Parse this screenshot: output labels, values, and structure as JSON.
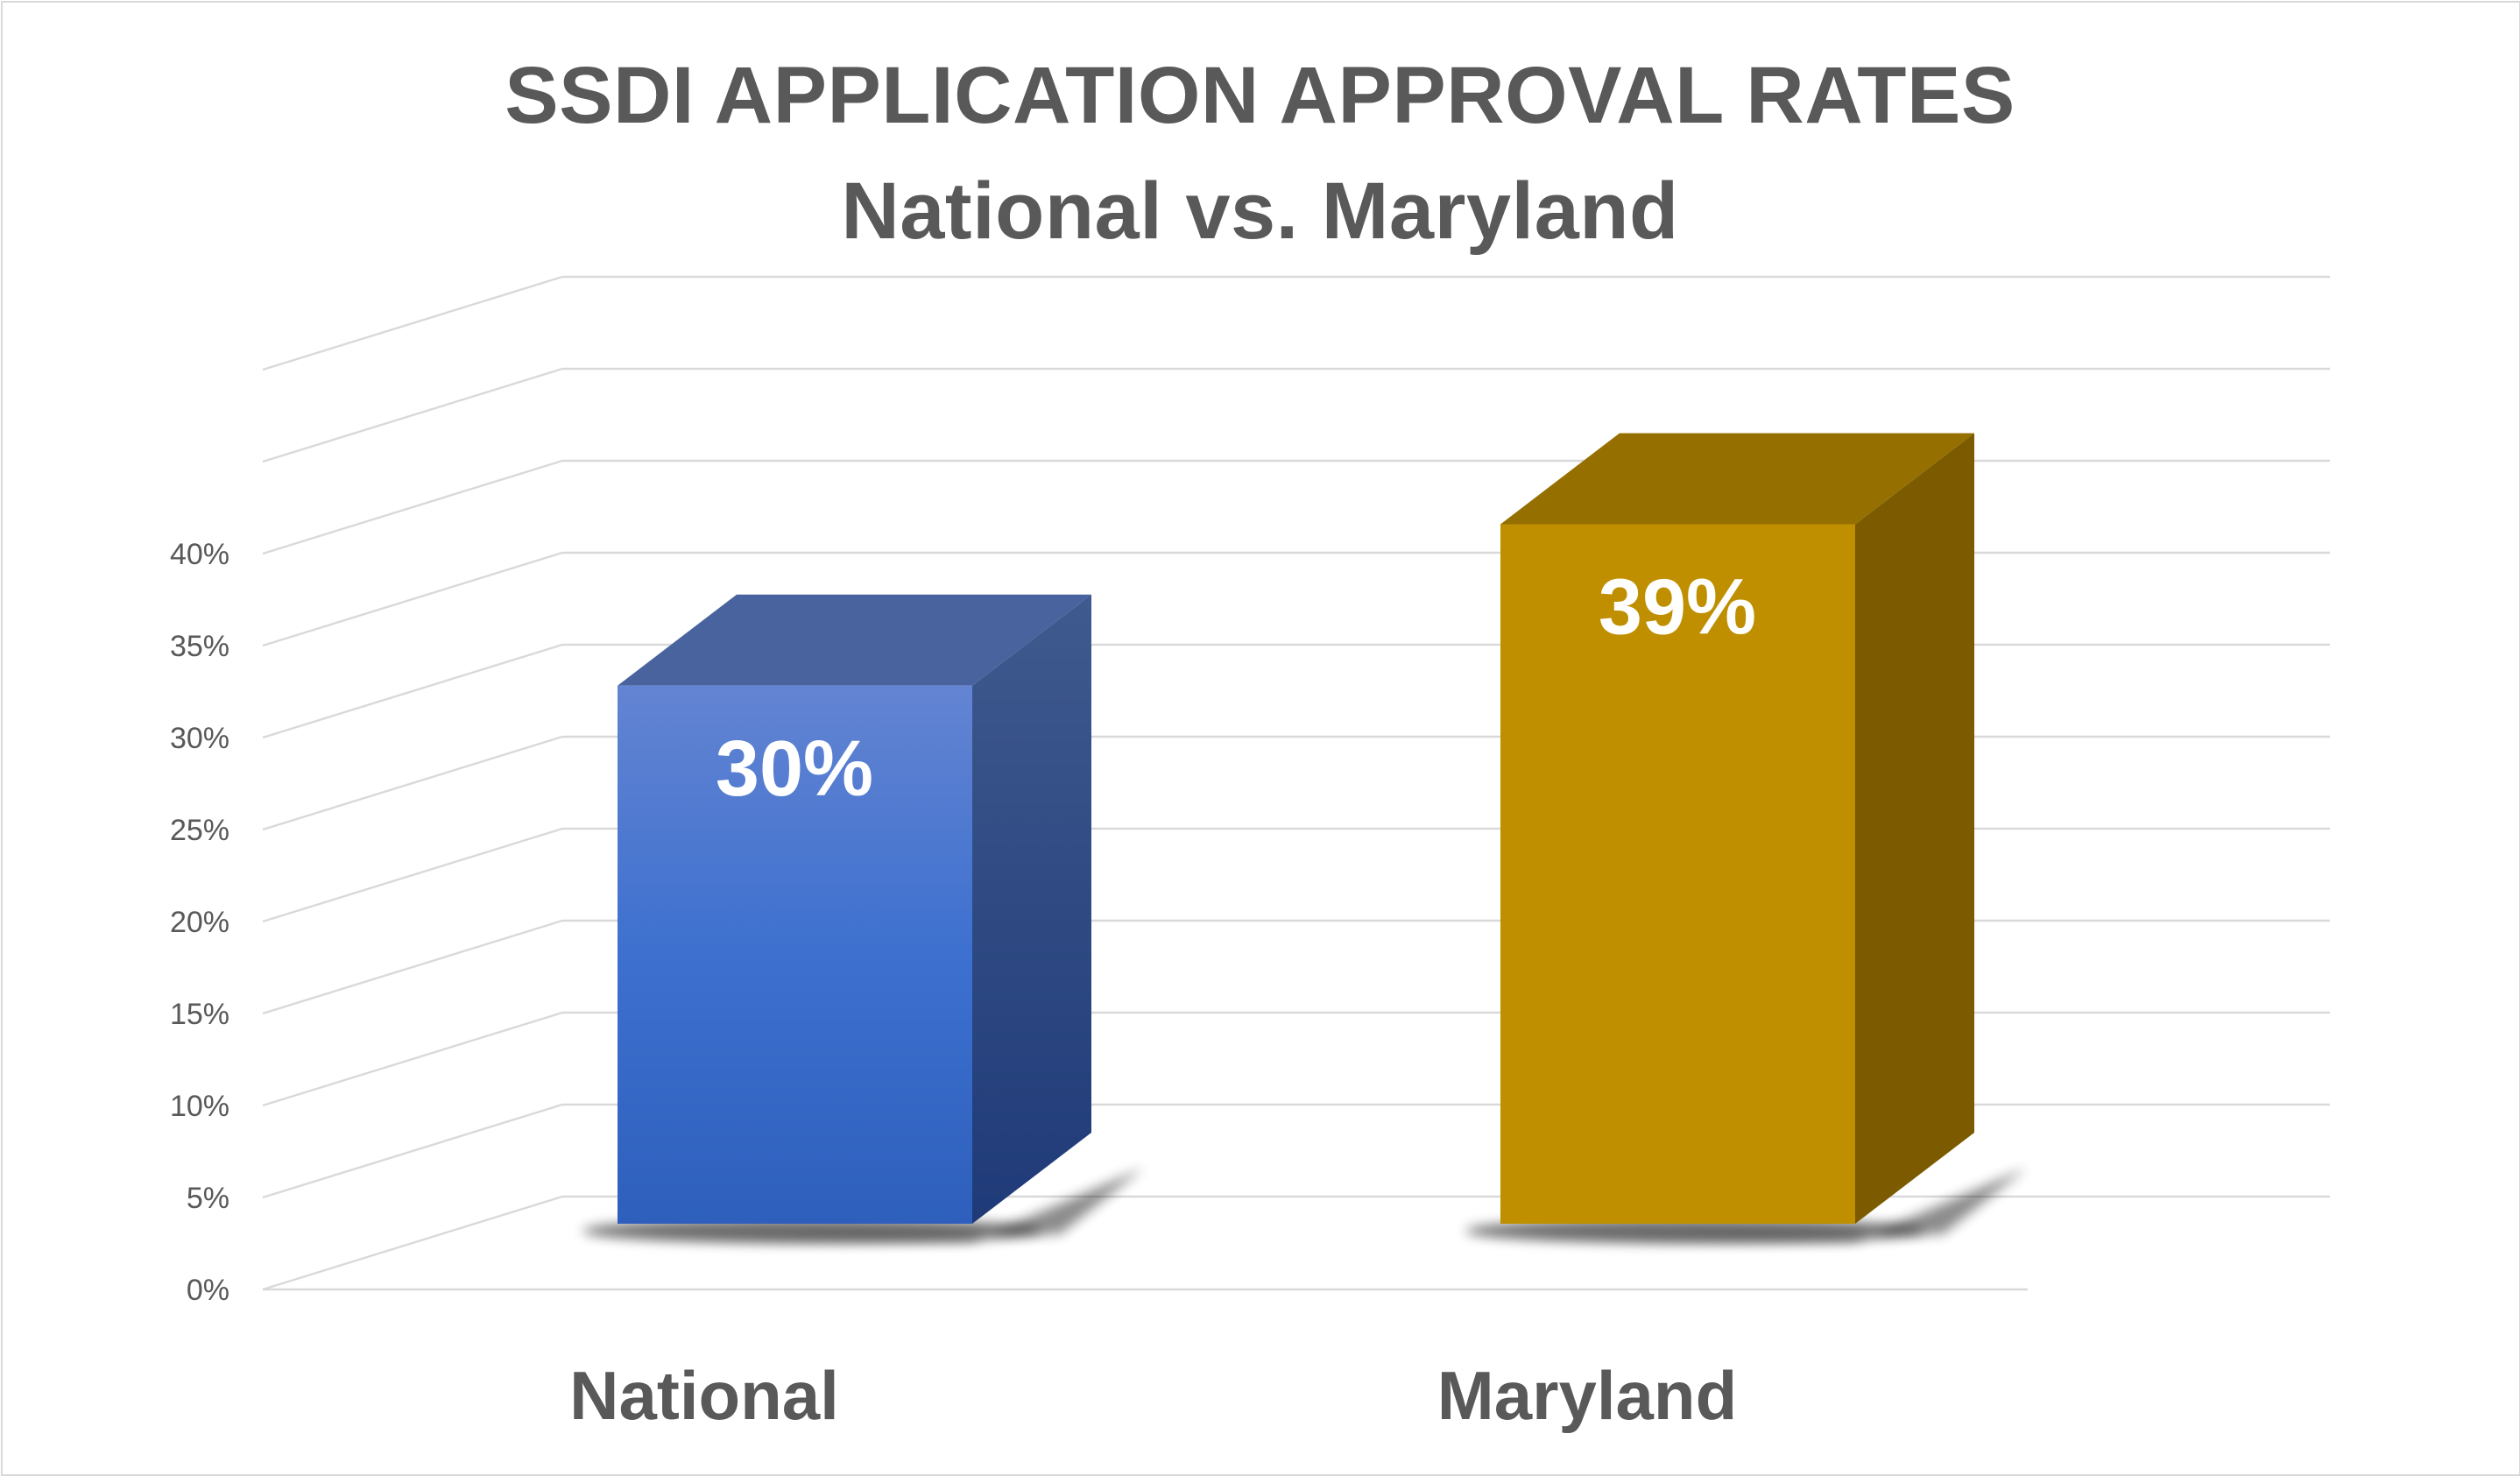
{
  "chart_data": {
    "type": "bar",
    "title": "SSDI APPLICATION APPROVAL RATES",
    "subtitle": "National vs. Maryland",
    "categories": [
      "National",
      "Maryland"
    ],
    "values": [
      30,
      39
    ],
    "data_labels": [
      "30%",
      "39%"
    ],
    "ylim": [
      0,
      40
    ],
    "y_ticks": [
      0,
      5,
      10,
      15,
      20,
      25,
      30,
      35,
      40
    ],
    "y_tick_labels": [
      "0%",
      "5%",
      "10%",
      "15%",
      "20%",
      "25%",
      "30%",
      "35%",
      "40%"
    ],
    "grid": true,
    "legend": "none",
    "style": "3d-column",
    "colors": {
      "national": "#4472c4",
      "maryland": "#bf8f00",
      "grid": "#d9d9d9",
      "text": "#595959"
    }
  }
}
